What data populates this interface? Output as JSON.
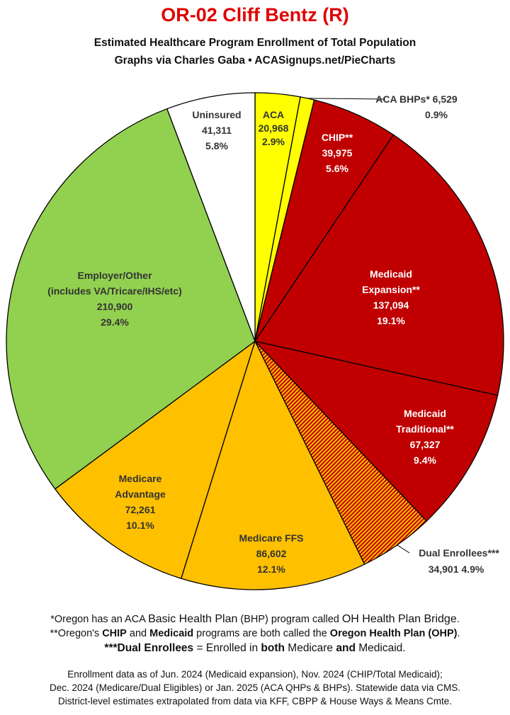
{
  "title": "OR-02 Cliff Bentz (R)",
  "subtitle_line1": "Estimated Healthcare Program Enrollment of Total Population",
  "subtitle_line2": "Graphs via Charles Gaba   •   ACASignups.net/PieCharts",
  "chart_data": {
    "type": "pie",
    "slices": [
      {
        "key": "aca",
        "label": [
          "ACA"
        ],
        "value": 20968,
        "value_text": "20,968",
        "percent": "2.9%",
        "color": "#ffff00",
        "label_color": "#333333"
      },
      {
        "key": "bhp",
        "label": [
          "ACA BHPs*"
        ],
        "value": 6529,
        "value_text": "6,529",
        "percent": "0.9%",
        "color": "#ffff00",
        "label_color": "#333333"
      },
      {
        "key": "chip",
        "label": [
          "CHIP**"
        ],
        "value": 39975,
        "value_text": "39,975",
        "percent": "5.6%",
        "color": "#c00000",
        "label_color": "#ffffff"
      },
      {
        "key": "mexp",
        "label": [
          "Medicaid",
          "Expansion**"
        ],
        "value": 137094,
        "value_text": "137,094",
        "percent": "19.1%",
        "color": "#c00000",
        "label_color": "#ffffff"
      },
      {
        "key": "mtrad",
        "label": [
          "Medicaid",
          "Traditional**"
        ],
        "value": 67327,
        "value_text": "67,327",
        "percent": "9.4%",
        "color": "#c00000",
        "label_color": "#ffffff"
      },
      {
        "key": "dual",
        "label": [
          "Dual Enrollees***"
        ],
        "value": 34901,
        "value_text": "34,901",
        "percent": "4.9%",
        "color": "#c00000",
        "label_color": "#333333",
        "pattern": "stripes"
      },
      {
        "key": "mffs",
        "label": [
          "Medicare FFS"
        ],
        "value": 86602,
        "value_text": "86,602",
        "percent": "12.1%",
        "color": "#ffc000",
        "label_color": "#333333"
      },
      {
        "key": "madv",
        "label": [
          "Medicare",
          "Advantage"
        ],
        "value": 72261,
        "value_text": "72,261",
        "percent": "10.1%",
        "color": "#ffc000",
        "label_color": "#333333"
      },
      {
        "key": "emp",
        "label": [
          "Employer/Other",
          "(includes VA/Tricare/IHS/etc)"
        ],
        "value": 210900,
        "value_text": "210,900",
        "percent": "29.4%",
        "color": "#92d050",
        "label_color": "#333333"
      },
      {
        "key": "unins",
        "label": [
          "Uninsured"
        ],
        "value": 41311,
        "value_text": "41,311",
        "percent": "5.8%",
        "color": "#ffffff",
        "label_color": "#333333"
      }
    ]
  },
  "footnotes": {
    "bhp_note": {
      "a": "*Oregon has an ACA ",
      "b": "Basic Health Plan",
      "c": " (BHP) program called ",
      "d": "OH Health Plan Bridge",
      "e": "."
    },
    "ohp_note": {
      "a": "**Oregon's ",
      "b": "CHIP",
      "c": " and ",
      "d": "Medicaid",
      "e": " programs are both called the ",
      "f": "Oregon Health Plan (OHP)",
      "g": "."
    },
    "dual_note": {
      "a": "***Dual Enrollees",
      "b": " = Enrolled in ",
      "c": "both",
      "d": " Medicare ",
      "e": "and",
      "f": " Medicaid."
    }
  },
  "source": {
    "line1": "Enrollment data as of Jun. 2024 (Medicaid expansion), Nov. 2024 (CHIP/Total Medicaid);",
    "line2": "Dec. 2024 (Medicare/Dual Eligibles) or Jan. 2025 (ACA QHPs & BHPs). Statewide data via CMS.",
    "line3": "District-level estimates extrapolated from data via KFF, CBPP & House Ways & Means Cmte."
  }
}
